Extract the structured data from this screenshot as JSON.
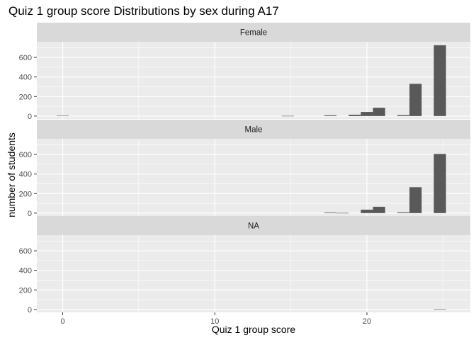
{
  "chart_data": {
    "type": "bar",
    "title": "Quiz 1 group score Distributions by sex during A17",
    "xlabel": "Quiz 1 group score",
    "ylabel": "number of students",
    "xlim": [
      -1.7,
      26.8
    ],
    "ylim": [
      -30,
      760
    ],
    "x_ticks": [
      0,
      10,
      20
    ],
    "x_tick_labels": [
      "0",
      "10",
      "20"
    ],
    "y_ticks": [
      0,
      200,
      400,
      600
    ],
    "y_tick_labels": [
      "0",
      "200",
      "400",
      "600"
    ],
    "bin_width": 0.8,
    "grid": true,
    "colors": {
      "bar": "#595959",
      "panel": "#ebebeb",
      "strip": "#d9d9d9",
      "grid": "#ffffff"
    },
    "facets": [
      {
        "label": "Female",
        "bars": [
          {
            "x": 0,
            "y": 4
          },
          {
            "x": 14.8,
            "y": 2
          },
          {
            "x": 17.6,
            "y": 8
          },
          {
            "x": 19.2,
            "y": 14
          },
          {
            "x": 20,
            "y": 42
          },
          {
            "x": 20.8,
            "y": 85
          },
          {
            "x": 22.4,
            "y": 10
          },
          {
            "x": 23.2,
            "y": 330
          },
          {
            "x": 24.8,
            "y": 725
          }
        ]
      },
      {
        "label": "Male",
        "bars": [
          {
            "x": 17.6,
            "y": 6
          },
          {
            "x": 18.4,
            "y": 2
          },
          {
            "x": 20,
            "y": 35
          },
          {
            "x": 20.8,
            "y": 65
          },
          {
            "x": 22.4,
            "y": 8
          },
          {
            "x": 23.2,
            "y": 265
          },
          {
            "x": 24.8,
            "y": 605
          }
        ]
      },
      {
        "label": "NA",
        "bars": [
          {
            "x": 24.8,
            "y": 3
          }
        ]
      }
    ]
  }
}
